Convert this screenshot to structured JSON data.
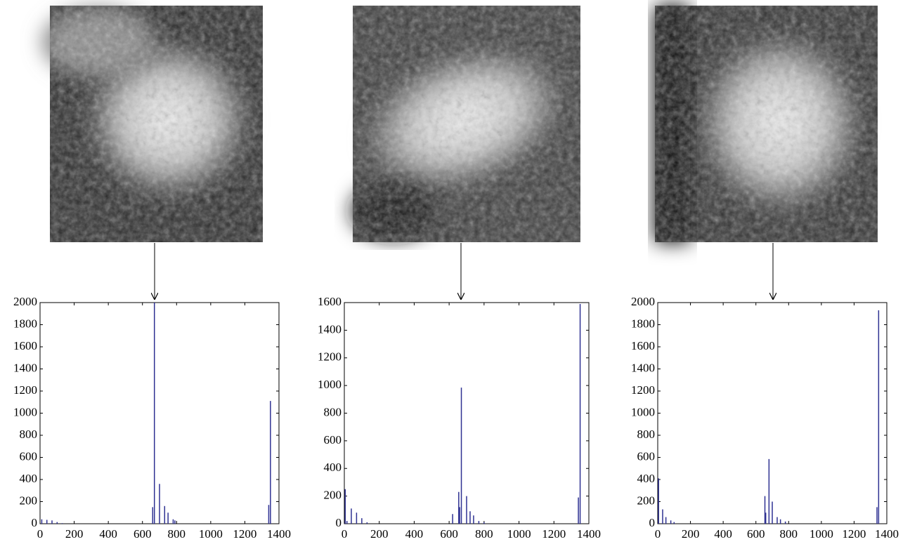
{
  "chart_data": [
    {
      "type": "stem",
      "x": [
        10,
        40,
        70,
        100,
        130,
        660,
        670,
        700,
        730,
        750,
        780,
        790,
        1340,
        1350
      ],
      "series": [
        {
          "color": "#2e3192",
          "values": [
            40,
            35,
            30,
            15,
            5,
            150,
            2000,
            360,
            160,
            100,
            40,
            30,
            170,
            1110
          ]
        }
      ],
      "xlim": [
        0,
        1400
      ],
      "xticks": [
        0,
        200,
        400,
        600,
        800,
        1000,
        1200,
        1400
      ],
      "ylim": [
        0,
        2000
      ],
      "yticks": [
        0,
        200,
        400,
        600,
        800,
        1000,
        1200,
        1400,
        1600,
        1800,
        2000
      ]
    },
    {
      "type": "stem",
      "x": [
        5,
        15,
        40,
        70,
        100,
        130,
        620,
        655,
        660,
        670,
        700,
        720,
        740,
        770,
        800,
        1340,
        1350
      ],
      "series": [
        {
          "color": "#2e3192",
          "values": [
            250,
            20,
            110,
            80,
            40,
            10,
            70,
            230,
            120,
            985,
            200,
            90,
            60,
            20,
            10,
            190,
            1590
          ]
        }
      ],
      "xlim": [
        0,
        1400
      ],
      "xticks": [
        0,
        200,
        400,
        600,
        800,
        1000,
        1200,
        1400
      ],
      "ylim": [
        0,
        1600
      ],
      "yticks": [
        0,
        200,
        400,
        600,
        800,
        1000,
        1200,
        1400,
        1600
      ]
    },
    {
      "type": "stem",
      "x": [
        5,
        30,
        50,
        80,
        100,
        655,
        660,
        680,
        700,
        730,
        750,
        780,
        1340,
        1350
      ],
      "series": [
        {
          "color": "#2e3192",
          "values": [
            410,
            130,
            60,
            30,
            15,
            250,
            100,
            585,
            200,
            60,
            40,
            20,
            150,
            1930
          ]
        }
      ],
      "xlim": [
        0,
        1400
      ],
      "xticks": [
        0,
        200,
        400,
        600,
        800,
        1000,
        1200,
        1400
      ],
      "ylim": [
        0,
        2000
      ],
      "yticks": [
        0,
        200,
        400,
        600,
        800,
        1000,
        1200,
        1400,
        1600,
        1800,
        2000
      ]
    }
  ]
}
